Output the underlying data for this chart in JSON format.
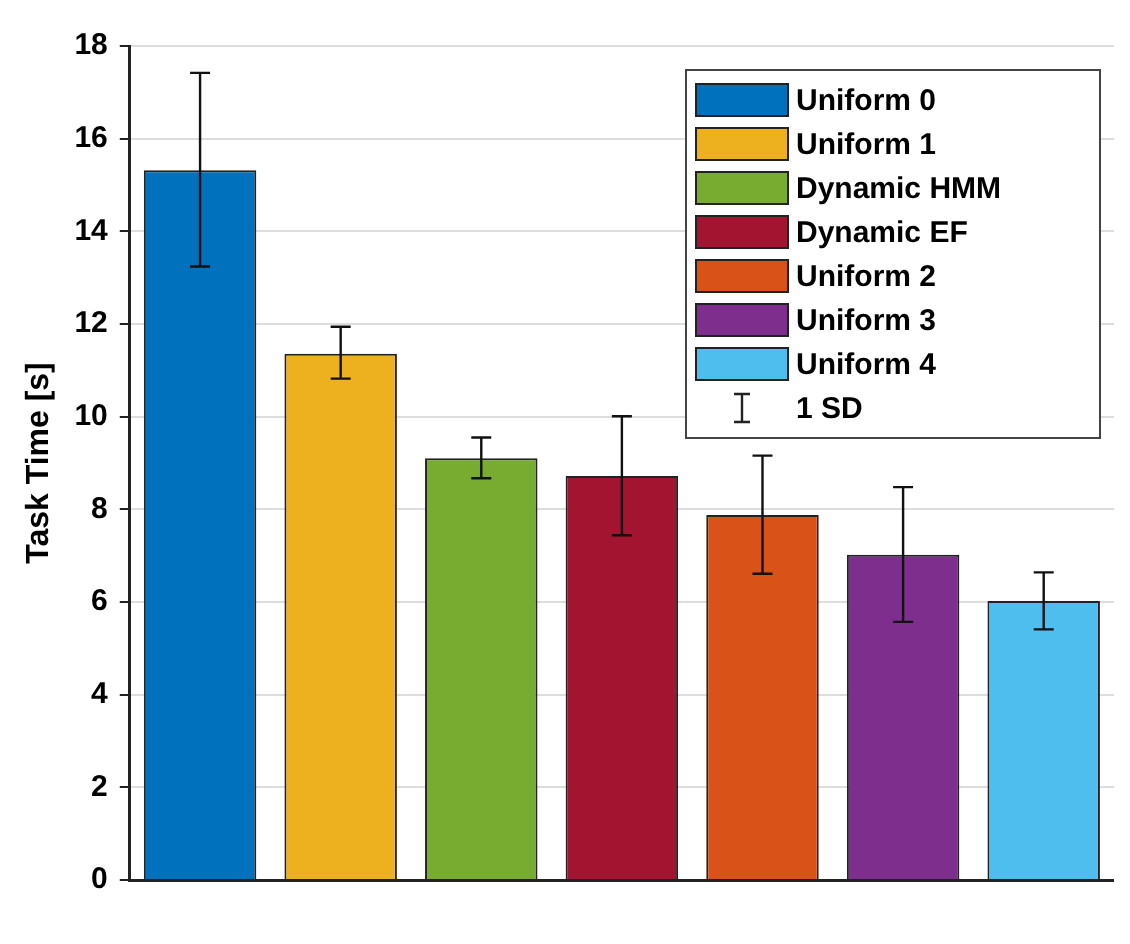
{
  "chart_data": {
    "type": "bar",
    "ylabel": "Task Time [s]",
    "categories": [
      null,
      null,
      null,
      null,
      null,
      null,
      null
    ],
    "series": [
      {
        "name": "Uniform 0",
        "color": "#0072bd",
        "values": [
          15.32,
          null,
          null,
          null,
          null,
          null,
          null
        ],
        "errors": [
          [
            13.24,
            17.42
          ],
          null,
          null,
          null,
          null,
          null,
          null
        ]
      },
      {
        "name": "Uniform 1",
        "color": "#edb120",
        "values": [
          null,
          11.36,
          null,
          null,
          null,
          null,
          null
        ],
        "errors": [
          null,
          [
            10.82,
            11.94
          ],
          null,
          null,
          null,
          null,
          null
        ]
      },
      {
        "name": "Dynamic HMM",
        "color": "#77ac30",
        "values": [
          null,
          null,
          9.1,
          null,
          null,
          null,
          null
        ],
        "errors": [
          null,
          null,
          [
            8.67,
            9.55
          ],
          null,
          null,
          null,
          null
        ]
      },
      {
        "name": "Dynamic EF",
        "color": "#a2142f",
        "values": [
          null,
          null,
          null,
          8.72,
          null,
          null,
          null
        ],
        "errors": [
          null,
          null,
          null,
          [
            7.44,
            10.01
          ],
          null,
          null,
          null
        ]
      },
      {
        "name": "Uniform 2",
        "color": "#d95319",
        "values": [
          null,
          null,
          null,
          null,
          7.88,
          null,
          null
        ],
        "errors": [
          null,
          null,
          null,
          null,
          [
            6.61,
            9.16
          ],
          null,
          null
        ]
      },
      {
        "name": "Uniform 3",
        "color": "#7e2f8e",
        "values": [
          null,
          null,
          null,
          null,
          null,
          7.02,
          null
        ],
        "errors": [
          null,
          null,
          null,
          null,
          null,
          [
            5.57,
            8.48
          ],
          null
        ]
      },
      {
        "name": "Uniform 4",
        "color": "#4dbeee",
        "values": [
          null,
          null,
          null,
          null,
          null,
          null,
          6.02
        ],
        "errors": [
          null,
          null,
          null,
          null,
          null,
          null,
          [
            5.41,
            6.64
          ]
        ]
      }
    ],
    "annotations": [
      "1 SD"
    ],
    "ylim": [
      0,
      18
    ],
    "yticks": [
      0,
      2,
      4,
      6,
      8,
      10,
      12,
      14,
      16,
      18
    ],
    "grid": "y",
    "legend": "top right"
  }
}
